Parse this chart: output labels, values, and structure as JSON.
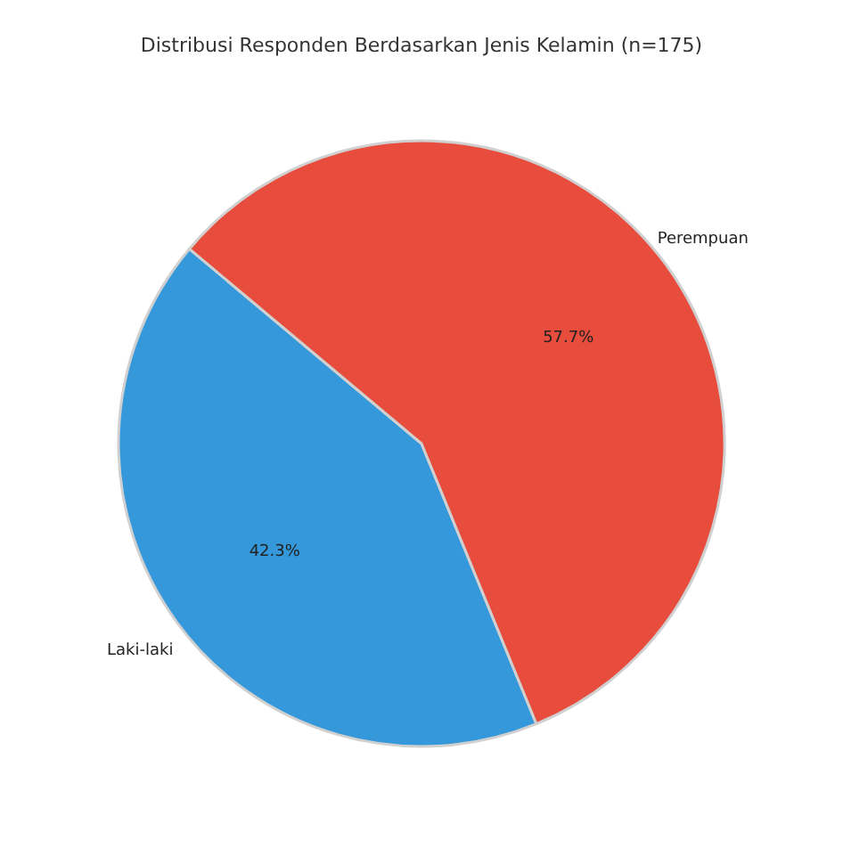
{
  "chart_data": {
    "type": "pie",
    "title": "Distribusi Responden Berdasarkan Jenis Kelamin (n=175)",
    "categories": [
      "Laki-laki",
      "Perempuan"
    ],
    "values": [
      42.3,
      57.7
    ],
    "colors": [
      "#3498db",
      "#e74c3c"
    ],
    "value_labels": [
      "42.3%",
      "57.7%"
    ],
    "legend": false
  }
}
